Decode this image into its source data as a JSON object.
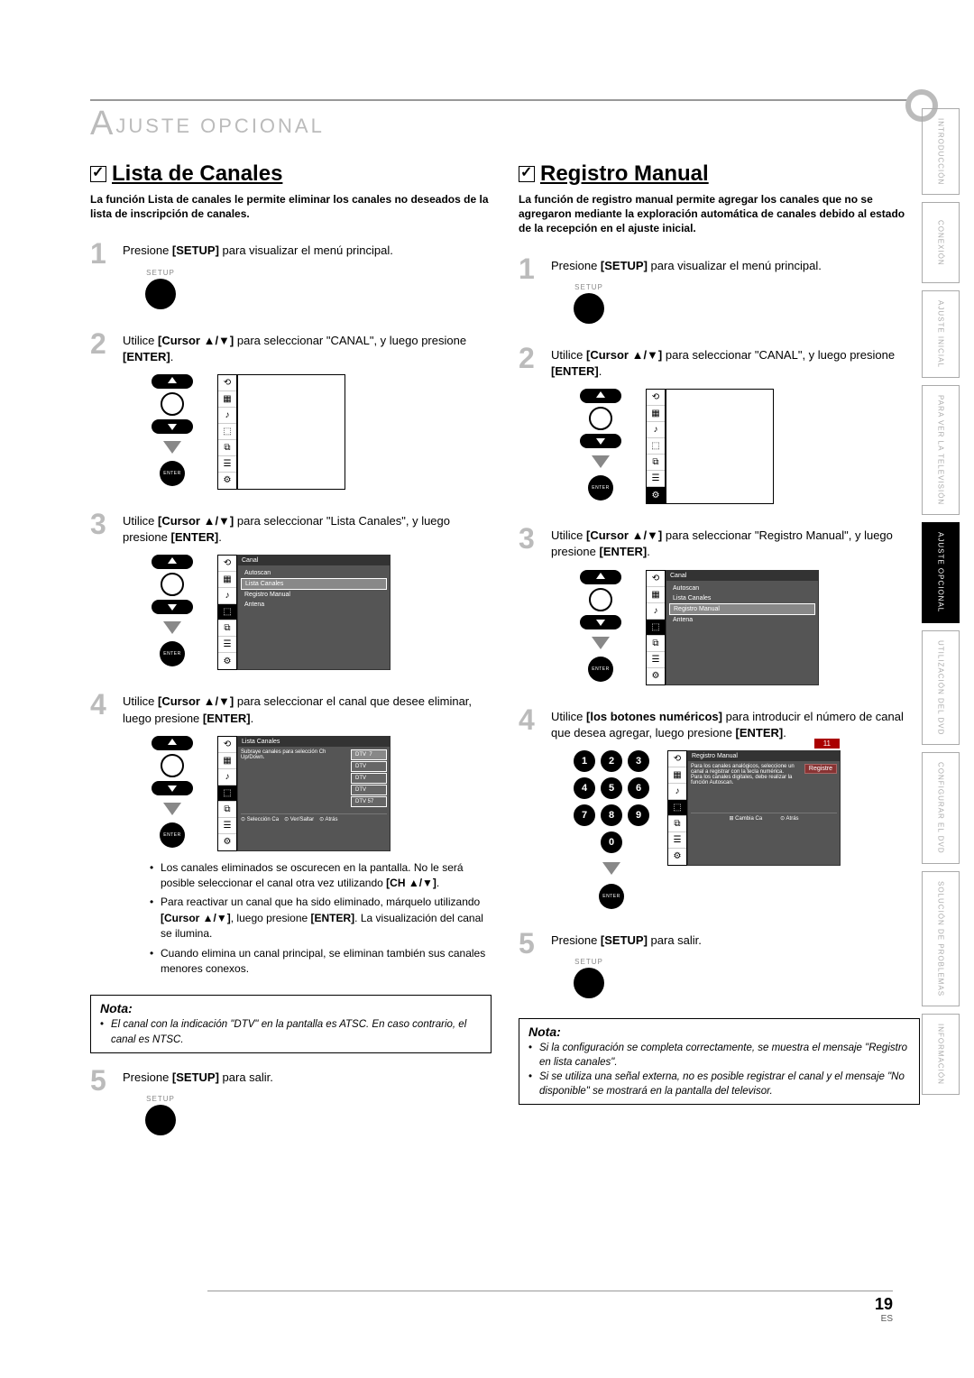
{
  "breadcrumb": {
    "text": "JUSTE  OPCIONAL",
    "prefix": "A"
  },
  "left": {
    "title": "Lista de Canales",
    "intro": "La función Lista de canales le permite eliminar los canales no deseados de la lista de inscripción de canales.",
    "steps": [
      {
        "n": "1",
        "text": "Presione <b>[SETUP]</b>   para visualizar el menú principal."
      },
      {
        "n": "2",
        "text": "Utilice <b>[Cursor ▲/▼]</b> para seleccionar \"CANAL\", y luego presione <b>[ENTER]</b>."
      },
      {
        "n": "3",
        "text": "Utilice <b>[Cursor ▲/▼]</b> para seleccionar \"Lista Canales\", y luego presione <b>[ENTER]</b>."
      },
      {
        "n": "4",
        "text": "Utilice <b>[Cursor ▲/▼]</b> para seleccionar el canal que desee eliminar, luego presione <b>[ENTER]</b>."
      },
      {
        "n": "5",
        "text": "Presione <b>[SETUP]</b> para salir."
      }
    ],
    "bullets": [
      "Los canales eliminados se oscurecen en la pantalla. No le será posible seleccionar el canal otra vez utilizando <b>[CH ▲/▼]</b>.",
      "Para reactivar un canal que ha sido eliminado, márquelo utilizando <b>[Cursor ▲/▼]</b>, luego presione <b>[ENTER]</b>. La visualización del canal se ilumina.",
      "Cuando elimina un canal principal, se eliminan también sus canales menores conexos."
    ],
    "nota": [
      "El canal con la indicación \"DTV\" en la pantalla es ATSC. En caso contrario, el canal es NTSC."
    ]
  },
  "right": {
    "title": "Registro Manual",
    "intro": "La función de registro manual permite agregar los canales que no se agregaron mediante la exploración automática de canales debido al estado de la recepción en el ajuste inicial.",
    "steps": [
      {
        "n": "1",
        "text": "Presione <b>[SETUP]</b> para visualizar el menú principal."
      },
      {
        "n": "2",
        "text": "Utilice <b>[Cursor ▲/▼]</b> para seleccionar \"CANAL\", y luego presione <b>[ENTER]</b>."
      },
      {
        "n": "3",
        "text": "Utilice <b>[Cursor ▲/▼]</b> para seleccionar \"Registro Manual\", y luego presione <b>[ENTER]</b>."
      },
      {
        "n": "4",
        "text": "Utilice <b>[los botones numéricos]</b> para introducir el número de canal que desea agregar, luego presione <b>[ENTER]</b>."
      },
      {
        "n": "5",
        "text": "Presione <b>[SETUP]</b> para salir."
      }
    ],
    "nota": [
      "Si la configuración se completa correctamente, se muestra el mensaje \"Registro en lista canales\".",
      "Si se utiliza una señal externa, no es posible registrar el canal y el mensaje \"No disponible\" se mostrará en la pantalla del televisor."
    ]
  },
  "menu": {
    "canal_title": "Canal",
    "items": [
      "Autoscan",
      "Lista Canales",
      "Registro Manual",
      "Antena"
    ],
    "canal_label": "CANAL",
    "lista_title": "Lista Canales",
    "lista_hint": "Subraye canales para selección Ch Up/Down.",
    "dtv": "DTV",
    "footer_sel": "Selección Ca",
    "footer_ver": "Ver/Saltar",
    "footer_back": "Atrás",
    "reg_title": "Registro Manual",
    "reg_button": "Registre",
    "reg_hint1": "Para los canales analógicos, seleccione un canal a registrar con la tecla numérica.",
    "reg_hint2": "Para los canales digitales, debe realizar la función Autoscan.",
    "reg_footer1": "Cambia Ca",
    "reg_footer2": "Atrás",
    "ch11": "11"
  },
  "labels": {
    "setup": "SETUP",
    "enter": "ENTER",
    "nota": "Nota:"
  },
  "tabs": [
    "INTRODUCCIÓN",
    "CONEXIÓN",
    "AJUSTE INICIAL",
    "PARA VER LA TELEVISIÓN",
    "AJUSTE OPCIONAL",
    "UTILIZACIÓN DEL DVD",
    "CONFIGURAR EL DVD",
    "SOLUCIÓN DE PROBLEMAS",
    "INFORMACIÓN"
  ],
  "active_tab_index": 4,
  "page": {
    "num": "19",
    "es": "ES"
  }
}
